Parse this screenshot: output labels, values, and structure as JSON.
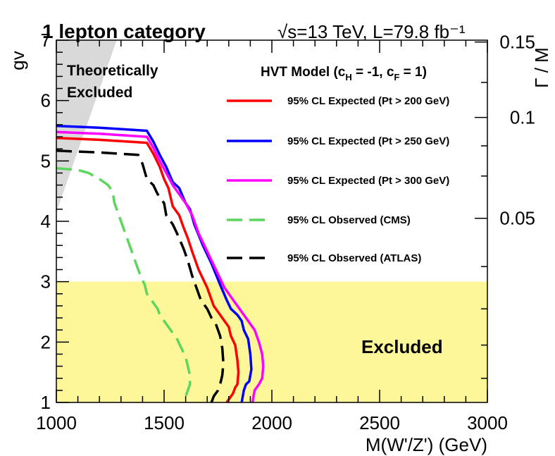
{
  "chart_data": {
    "type": "line",
    "title": "1 lepton category",
    "energy_label": "√s=13 TeV, L=79.8 fb⁻¹",
    "xlabel": "M(W'/Z') (GeV)",
    "ylabel": "gv",
    "y2label": "Γ / M",
    "xlim": [
      1000,
      3000
    ],
    "ylim": [
      1,
      7
    ],
    "x_ticks": [
      1000,
      1500,
      2000,
      2500,
      3000
    ],
    "y_ticks": [
      1,
      2,
      3,
      4,
      5,
      6,
      7
    ],
    "y2_ticks": [
      {
        "gv": 4.05,
        "label": "0.05"
      },
      {
        "gv": 5.72,
        "label": "0.1"
      },
      {
        "gv": 6.97,
        "label": "0.15"
      }
    ],
    "legend_title": "HVT Model (c_H = -1, c_F = 1)",
    "legend_position": "top-right",
    "regions": [
      {
        "name": "Theoretically Excluded",
        "label_lines": [
          "Theoretically",
          "Excluded"
        ],
        "color": "#d9d9d9",
        "polygon": [
          [
            1000,
            7
          ],
          [
            1280,
            7
          ],
          [
            1000,
            4.15
          ]
        ]
      },
      {
        "name": "Excluded",
        "label_lines": [
          "Excluded"
        ],
        "color": "#fdf79a",
        "polygon": [
          [
            1000,
            1
          ],
          [
            3000,
            1
          ],
          [
            3000,
            3
          ],
          [
            1000,
            3
          ]
        ]
      }
    ],
    "series": [
      {
        "name": "95% CL Expected (Pt > 200 GeV)",
        "color": "#ff0000",
        "dash": "solid",
        "x": [
          1000,
          1200,
          1420,
          1450,
          1480,
          1500,
          1520,
          1540,
          1570,
          1590,
          1610,
          1630,
          1660,
          1700,
          1730,
          1750,
          1780,
          1800,
          1810,
          1830,
          1840,
          1845,
          1840,
          1830,
          1820,
          1800,
          1790
        ],
        "y": [
          5.38,
          5.35,
          5.3,
          5.12,
          4.9,
          4.7,
          4.55,
          4.25,
          4.1,
          3.9,
          3.72,
          3.5,
          3.2,
          2.9,
          2.6,
          2.5,
          2.35,
          2.25,
          2.1,
          1.95,
          1.7,
          1.5,
          1.3,
          1.25,
          1.15,
          1.05,
          1.0
        ]
      },
      {
        "name": "95% CL Expected (Pt > 250 GeV)",
        "color": "#0000ff",
        "dash": "solid",
        "x": [
          1000,
          1200,
          1420,
          1450,
          1480,
          1510,
          1540,
          1570,
          1600,
          1620,
          1640,
          1680,
          1720,
          1760,
          1790,
          1810,
          1840,
          1860,
          1870,
          1890,
          1900,
          1905,
          1895,
          1880,
          1870,
          1860
        ],
        "y": [
          5.58,
          5.55,
          5.5,
          5.32,
          5.1,
          4.9,
          4.65,
          4.55,
          4.3,
          4.2,
          3.95,
          3.6,
          3.3,
          2.95,
          2.7,
          2.55,
          2.45,
          2.35,
          2.2,
          2.05,
          1.8,
          1.55,
          1.35,
          1.3,
          1.2,
          1.0
        ]
      },
      {
        "name": "95% CL Expected (Pt > 300 GeV)",
        "color": "#ff00ff",
        "dash": "solid",
        "x": [
          1000,
          1200,
          1420,
          1450,
          1480,
          1510,
          1540,
          1570,
          1600,
          1630,
          1660,
          1700,
          1740,
          1780,
          1820,
          1850,
          1880,
          1920,
          1940,
          1955,
          1960,
          1955,
          1940,
          1920,
          1910
        ],
        "y": [
          5.48,
          5.45,
          5.4,
          5.22,
          5.0,
          4.8,
          4.6,
          4.45,
          4.3,
          4.1,
          3.8,
          3.5,
          3.2,
          2.9,
          2.7,
          2.55,
          2.4,
          2.2,
          2.0,
          1.8,
          1.6,
          1.4,
          1.3,
          1.2,
          1.0
        ]
      },
      {
        "name": "95% CL Observed (CMS)",
        "color": "#5cd65c",
        "dash": "dashed",
        "x": [
          1000,
          1100,
          1150,
          1200,
          1240,
          1260,
          1270,
          1290,
          1300,
          1320,
          1330,
          1350,
          1370,
          1390,
          1410,
          1420,
          1450,
          1470,
          1480,
          1500,
          1520,
          1540,
          1560,
          1580,
          1600,
          1610,
          1620,
          1620,
          1610,
          1600,
          1590
        ],
        "y": [
          4.88,
          4.85,
          4.8,
          4.7,
          4.6,
          4.5,
          4.3,
          4.1,
          4.0,
          3.8,
          3.7,
          3.5,
          3.3,
          3.1,
          2.95,
          2.8,
          2.65,
          2.55,
          2.45,
          2.35,
          2.25,
          2.15,
          2.05,
          1.9,
          1.75,
          1.6,
          1.45,
          1.3,
          1.2,
          1.1,
          1.0
        ]
      },
      {
        "name": "95% CL Observed (ATLAS)",
        "color": "#000000",
        "dash": "dashed",
        "x": [
          1000,
          1200,
          1380,
          1400,
          1420,
          1450,
          1470,
          1500,
          1510,
          1540,
          1560,
          1590,
          1610,
          1630,
          1650,
          1670,
          1700,
          1720,
          1740,
          1760,
          1770,
          1775,
          1770,
          1760,
          1750,
          1730,
          1720
        ],
        "y": [
          5.17,
          5.14,
          5.1,
          4.95,
          4.7,
          4.6,
          4.45,
          4.3,
          4.1,
          3.95,
          3.8,
          3.55,
          3.35,
          3.1,
          2.9,
          2.7,
          2.55,
          2.4,
          2.3,
          2.1,
          1.9,
          1.65,
          1.45,
          1.3,
          1.2,
          1.1,
          1.0
        ]
      }
    ]
  }
}
